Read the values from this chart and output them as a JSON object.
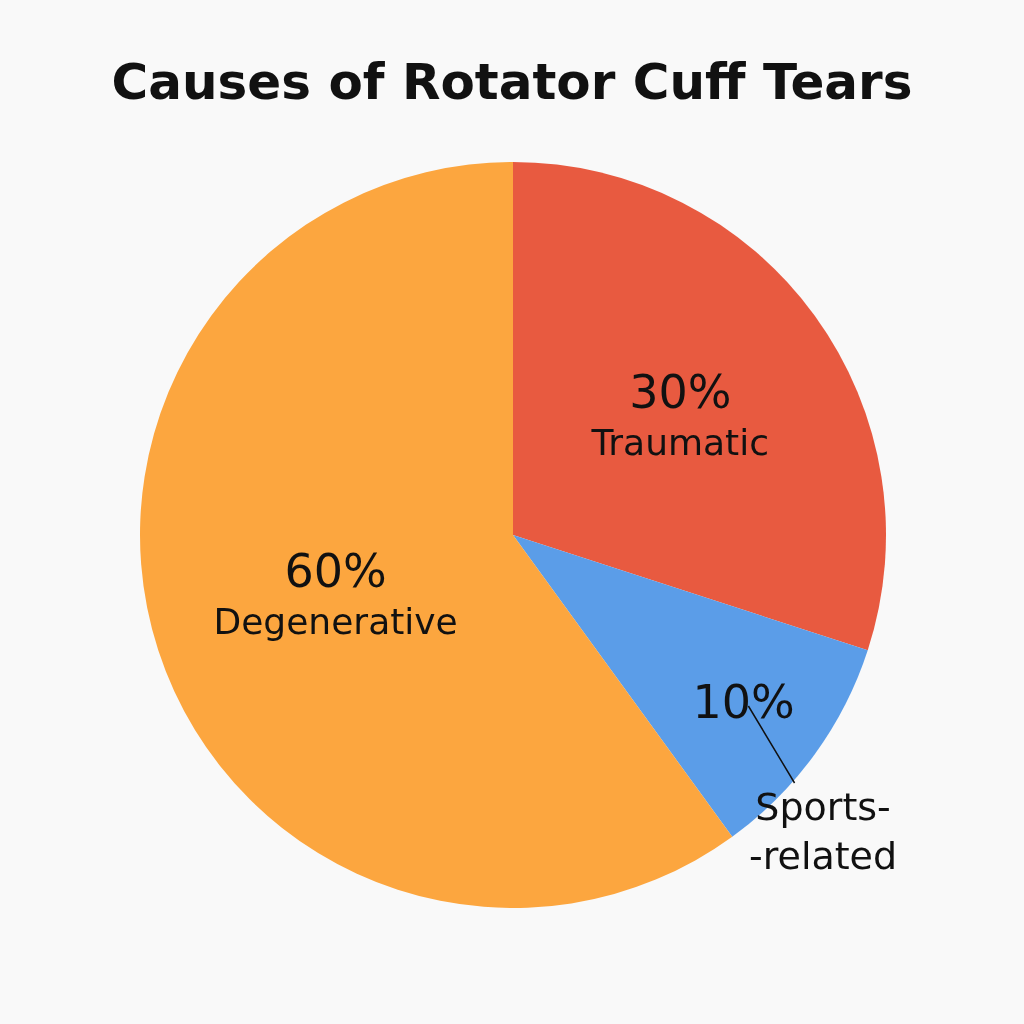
{
  "chart_data": {
    "type": "pie",
    "title": "Causes of Rotator Cuff Tears",
    "categories": [
      "Traumatic",
      "Sports-\n-related",
      "Degenerative"
    ],
    "values": [
      30,
      10,
      60
    ],
    "colors": [
      "#e85a40",
      "#5b9de8",
      "#fca63f"
    ],
    "value_labels": [
      "30%",
      "10%",
      "60%"
    ]
  }
}
